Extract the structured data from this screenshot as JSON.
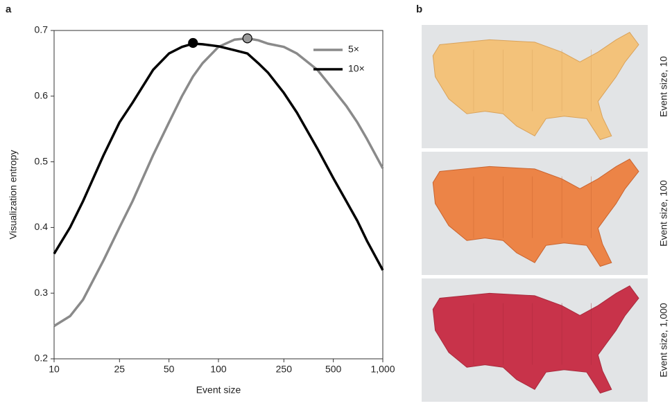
{
  "panel_a_label": "a",
  "chart_data": {
    "type": "line",
    "xlabel": "Event size",
    "ylabel": "Visualization entropy",
    "xscale": "log",
    "xlim": [
      10,
      1000
    ],
    "ylim": [
      0.2,
      0.7
    ],
    "xticks": [
      10,
      25,
      50,
      100,
      250,
      500,
      {
        "value": 1000,
        "label": "1,000"
      }
    ],
    "yticks": [
      0.2,
      0.3,
      0.4,
      0.5,
      0.6,
      0.7
    ],
    "legend": "upper right",
    "x": [
      10,
      12.5,
      15,
      20,
      25,
      30,
      40,
      50,
      60,
      70,
      80,
      100,
      125,
      150,
      175,
      200,
      250,
      300,
      400,
      500,
      600,
      700,
      800,
      1000
    ],
    "series": [
      {
        "name": "5×",
        "color": "#8a8a8a",
        "values": [
          0.25,
          0.265,
          0.29,
          0.35,
          0.4,
          0.44,
          0.51,
          0.56,
          0.6,
          0.63,
          0.65,
          0.675,
          0.686,
          0.688,
          0.685,
          0.68,
          0.675,
          0.665,
          0.64,
          0.61,
          0.585,
          0.56,
          0.535,
          0.49
        ],
        "peak": {
          "x": 150,
          "y": 0.688
        }
      },
      {
        "name": "10×",
        "color": "#000000",
        "values": [
          0.36,
          0.4,
          0.44,
          0.51,
          0.56,
          0.59,
          0.64,
          0.665,
          0.675,
          0.68,
          0.679,
          0.676,
          0.67,
          0.665,
          0.65,
          0.636,
          0.605,
          0.575,
          0.52,
          0.475,
          0.44,
          0.41,
          0.38,
          0.335
        ],
        "peak": {
          "x": 70,
          "y": 0.681
        }
      }
    ]
  },
  "panel_b": {
    "label": "b",
    "maps": [
      {
        "caption": "Event size, 10"
      },
      {
        "caption": "Event size, 100"
      },
      {
        "caption": "Event size, 1,000"
      }
    ]
  }
}
